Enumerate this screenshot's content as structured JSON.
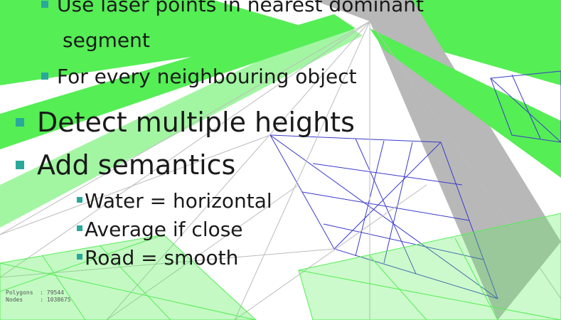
{
  "slide": {
    "bullets": [
      {
        "level": 2,
        "text": "Use laser points in nearest dominant"
      },
      {
        "level": 2,
        "text": "segment",
        "continuation": true
      },
      {
        "level": 2,
        "text": "For every neighbouring object"
      },
      {
        "level": 1,
        "text": "Detect multiple heights"
      },
      {
        "level": 1,
        "text": "Add semantics"
      },
      {
        "level": 3,
        "text": "Water = horizontal"
      },
      {
        "level": 3,
        "text": "Average if close"
      },
      {
        "level": 3,
        "text": "Road = smooth"
      }
    ]
  },
  "overlay_stats": {
    "polygons_label": "Polygons",
    "polygons_value": ": 79544",
    "nodes_label": "Nodes",
    "nodes_value": ": 1038675"
  },
  "colors": {
    "mesh_green": "#55ee55",
    "mesh_gray": "#b8b8b8",
    "mesh_blue": "#3a3acc",
    "bullet_teal": "#2aa89a",
    "text": "#1a1a1a"
  }
}
